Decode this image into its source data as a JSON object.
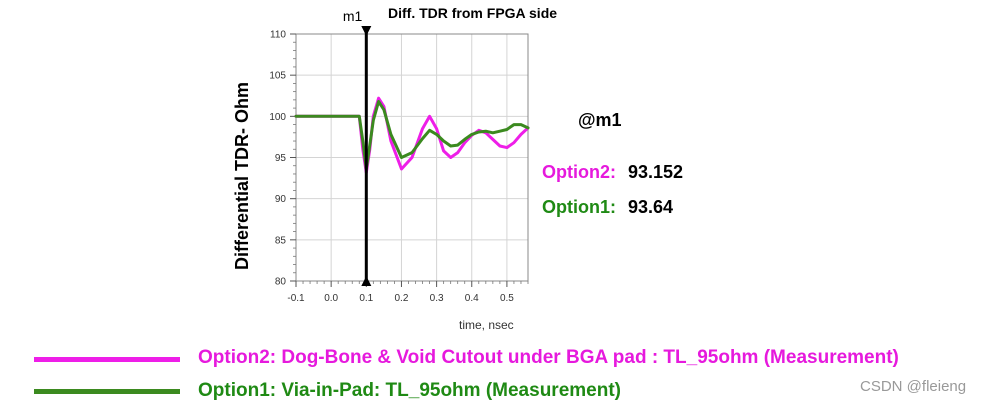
{
  "chart_data": {
    "type": "line",
    "title": "Diff. TDR from FPGA side",
    "xlabel": "time, nsec",
    "ylabel": "Differential TDR- Ohm",
    "xlim": [
      -0.1,
      0.56
    ],
    "ylim": [
      80,
      110
    ],
    "xticks": [
      -0.1,
      0.0,
      0.1,
      0.2,
      0.3,
      0.4,
      0.5
    ],
    "xtick_labels": [
      "-0.1",
      "0.0",
      "0.1",
      "0.2",
      "0.3",
      "0.4",
      "0.5"
    ],
    "yticks": [
      80,
      85,
      90,
      95,
      100,
      105,
      110
    ],
    "ytick_labels": [
      "80",
      "85",
      "90",
      "95",
      "100",
      "105",
      "110"
    ],
    "grid": true,
    "marker": {
      "name": "m1",
      "x": 0.1
    },
    "series": [
      {
        "color": "#ee1ee8",
        "x": [
          -0.1,
          -0.06,
          -0.02,
          0.02,
          0.06,
          0.08,
          0.09,
          0.1,
          0.11,
          0.12,
          0.135,
          0.15,
          0.17,
          0.2,
          0.23,
          0.26,
          0.28,
          0.3,
          0.32,
          0.34,
          0.36,
          0.38,
          0.4,
          0.42,
          0.44,
          0.46,
          0.48,
          0.5,
          0.52,
          0.54,
          0.56
        ],
        "y": [
          100,
          100,
          100,
          100,
          100,
          100,
          96,
          93.15,
          96,
          100,
          102.2,
          101.2,
          97,
          93.6,
          95,
          98.5,
          100,
          98.5,
          95.8,
          95,
          95.6,
          96.8,
          97.7,
          98.3,
          98,
          97.2,
          96.4,
          96.2,
          96.8,
          97.8,
          98.6
        ]
      },
      {
        "color": "#3b8a1f",
        "x": [
          -0.1,
          -0.06,
          -0.02,
          0.02,
          0.06,
          0.08,
          0.09,
          0.1,
          0.11,
          0.12,
          0.135,
          0.15,
          0.17,
          0.2,
          0.23,
          0.26,
          0.28,
          0.3,
          0.32,
          0.34,
          0.36,
          0.38,
          0.4,
          0.42,
          0.44,
          0.46,
          0.48,
          0.5,
          0.52,
          0.54,
          0.56
        ],
        "y": [
          100,
          100,
          100,
          100,
          100,
          100,
          97,
          93.64,
          96.5,
          99.5,
          101.8,
          100.8,
          97.8,
          95,
          95.6,
          97.3,
          98.3,
          97.8,
          97,
          96.4,
          96.5,
          97.2,
          97.8,
          98.1,
          98.2,
          98,
          98.2,
          98.4,
          99,
          99,
          98.6
        ]
      }
    ]
  },
  "marker_readout": {
    "heading": "@m1",
    "items": [
      {
        "label": "Option2:",
        "value": "93.152",
        "color": "#e619dd"
      },
      {
        "label": "Option1:",
        "value": "93.64",
        "color": "#1f8a14"
      }
    ]
  },
  "legend": [
    {
      "text": "Option2:  Dog-Bone & Void Cutout under BGA pad : TL_95ohm (Measurement)",
      "color": "#ee1ee8"
    },
    {
      "text": "Option1:  Via-in-Pad: TL_95ohm (Measurement)",
      "color": "#3b8a1f"
    }
  ],
  "watermark": "CSDN @fleieng"
}
